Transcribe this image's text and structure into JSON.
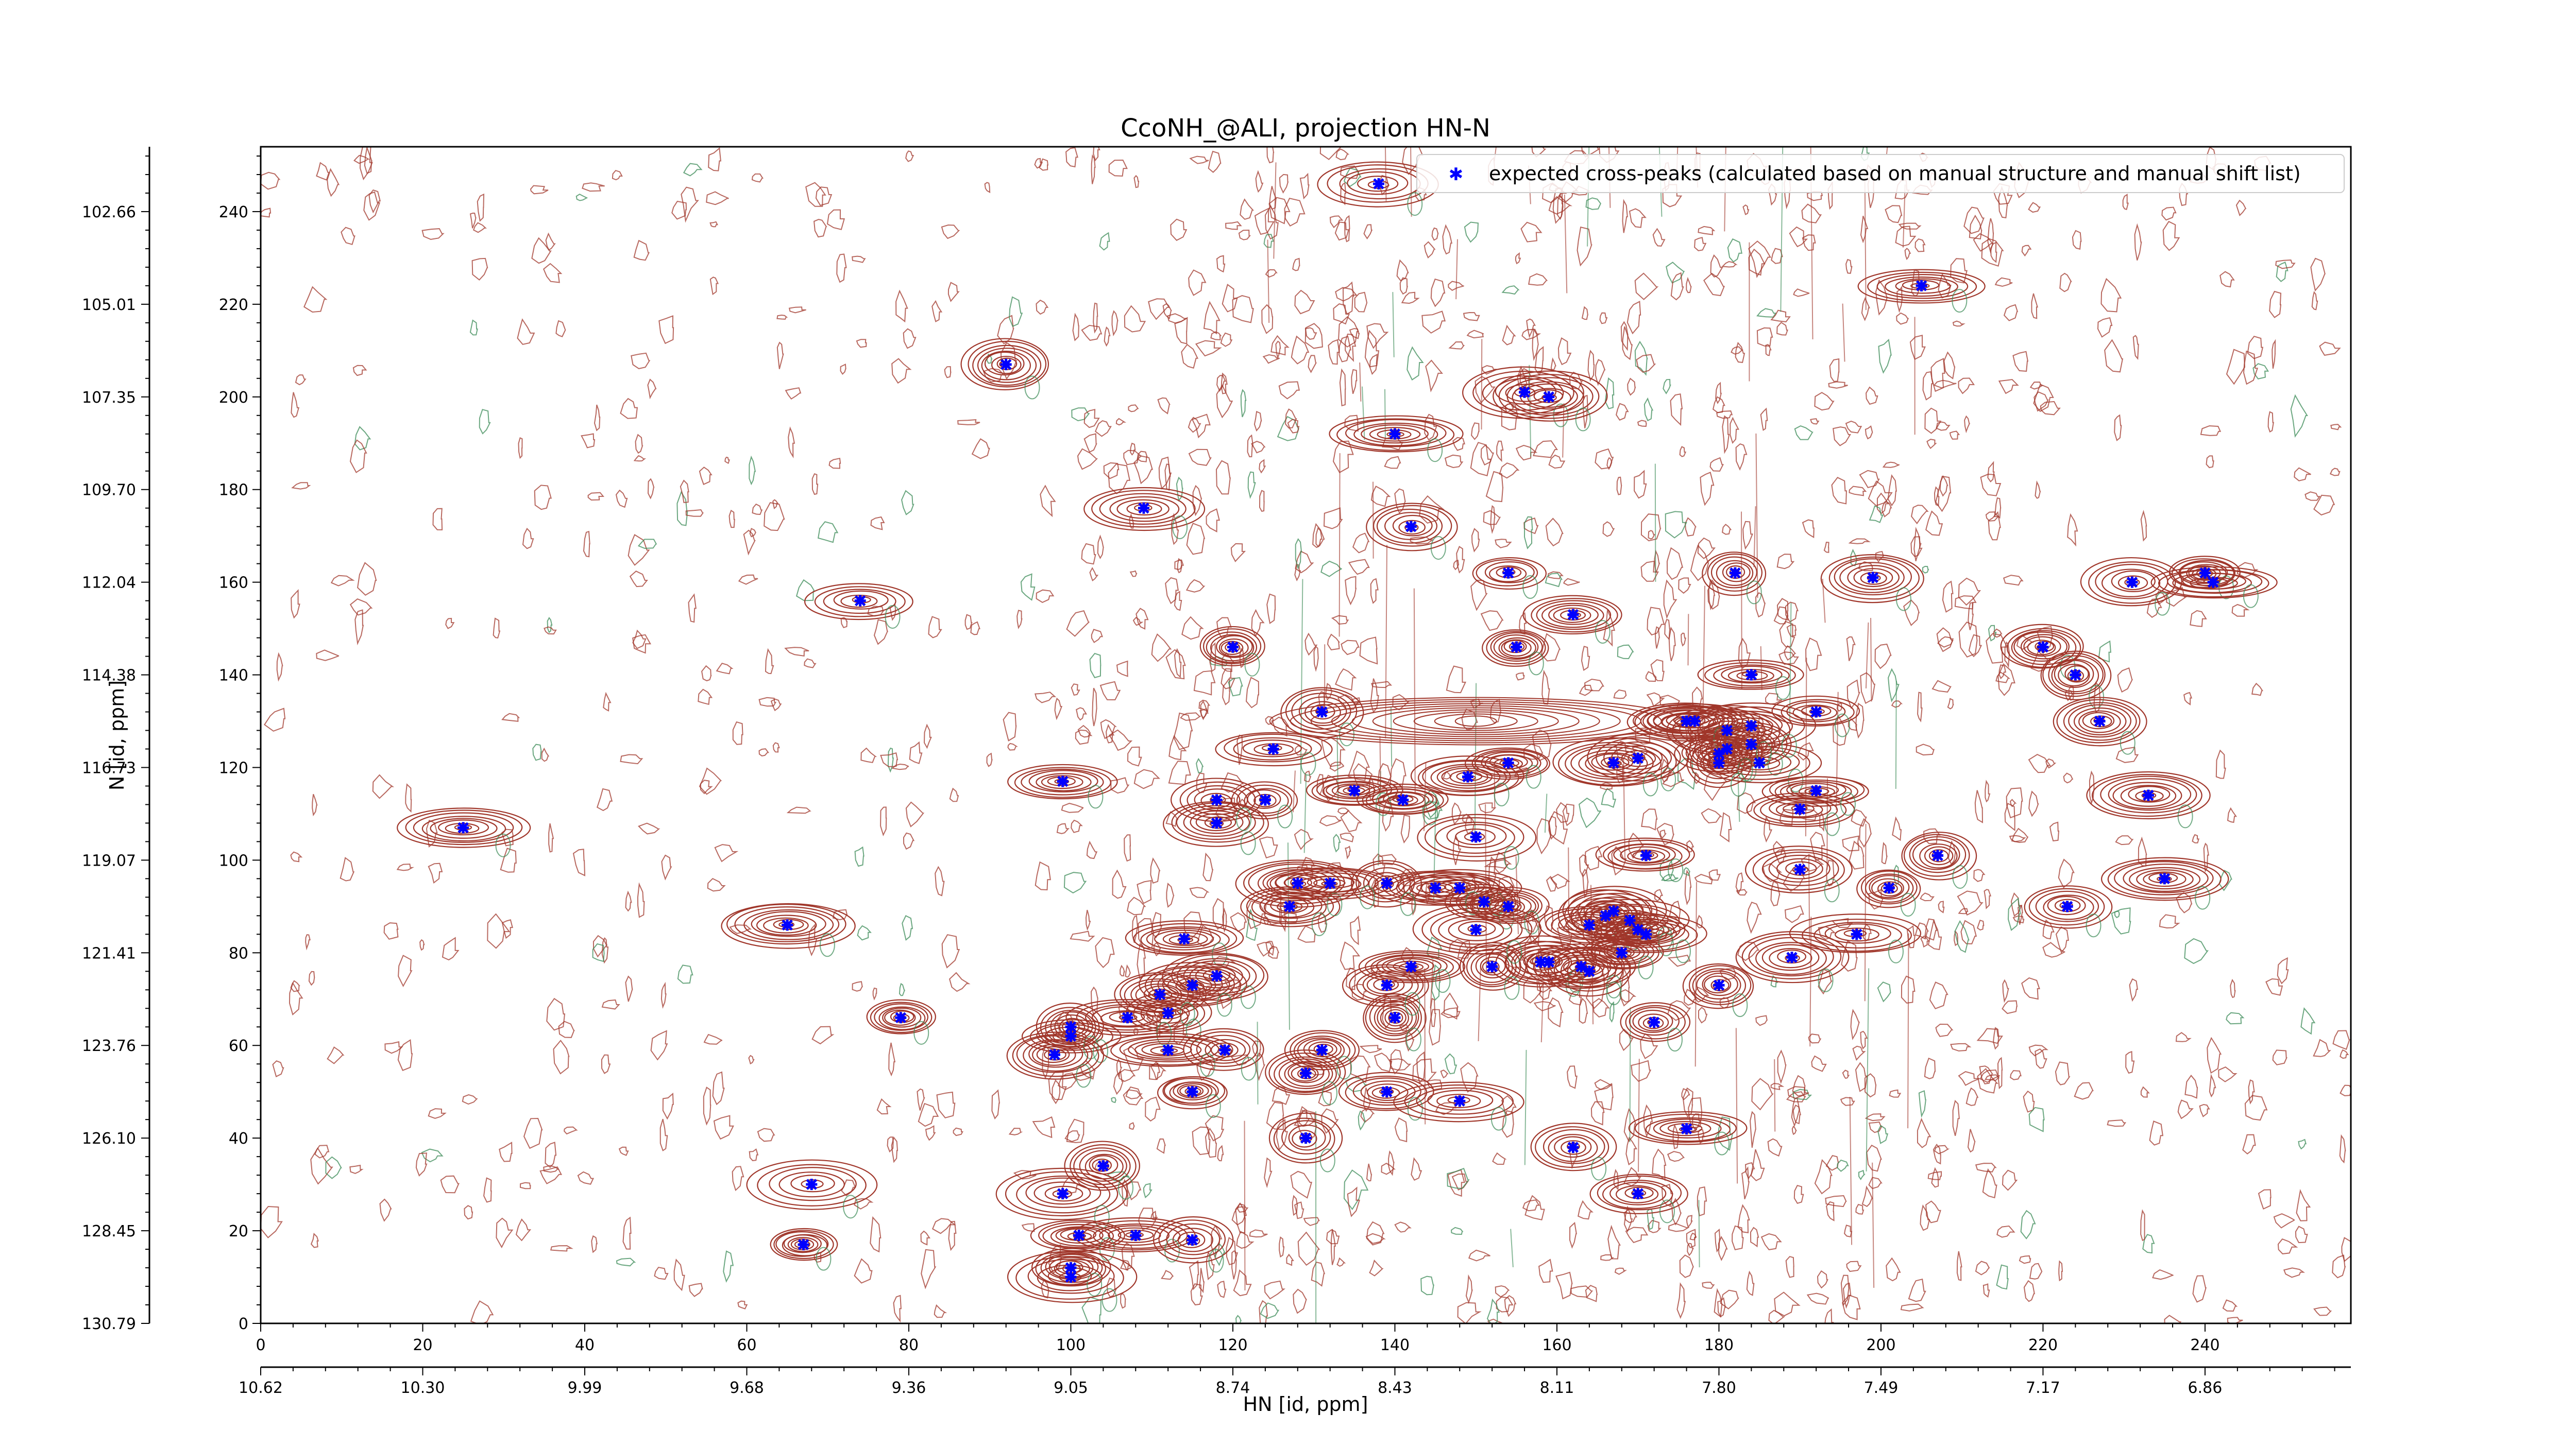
{
  "chart_data": {
    "type": "scatter",
    "title": "CcoNH_@ALI, projection HN-N",
    "xlabel": "HN [id, ppm]",
    "ylabel": "N [id, ppm]",
    "x_index_ticks": [
      "0",
      "20",
      "40",
      "60",
      "80",
      "100",
      "120",
      "140",
      "160",
      "180",
      "200",
      "220",
      "240"
    ],
    "x_ppm_ticks": [
      "10.62",
      "10.30",
      "9.99",
      "9.68",
      "9.36",
      "9.05",
      "8.74",
      "8.43",
      "8.11",
      "7.80",
      "7.49",
      "7.17",
      "6.86"
    ],
    "y_index_ticks": [
      "0",
      "20",
      "40",
      "60",
      "80",
      "100",
      "120",
      "140",
      "160",
      "180",
      "200",
      "220",
      "240"
    ],
    "y_ppm_ticks": [
      "130.79",
      "128.45",
      "126.10",
      "123.76",
      "121.41",
      "119.07",
      "116.73",
      "114.38",
      "112.04",
      "109.70",
      "107.35",
      "105.01",
      "102.66"
    ],
    "xlim": [
      0,
      258
    ],
    "ylim": [
      0,
      254
    ],
    "grid": false,
    "legend_position": "top-right",
    "contour_color": "#a0362a",
    "negative_contour_color": "#3a8a55",
    "series": [
      {
        "name": "expected cross-peaks (calculated based on manual structure and manual shift list)",
        "color": "#0000ff",
        "marker": "x",
        "points": [
          [
            138,
            246
          ],
          [
            205,
            224
          ],
          [
            92,
            207
          ],
          [
            156,
            201
          ],
          [
            159,
            200
          ],
          [
            140,
            192
          ],
          [
            109,
            176
          ],
          [
            142,
            172
          ],
          [
            74,
            156
          ],
          [
            120,
            146
          ],
          [
            154,
            162
          ],
          [
            162,
            153
          ],
          [
            155,
            146
          ],
          [
            182,
            162
          ],
          [
            199,
            161
          ],
          [
            231,
            160
          ],
          [
            240,
            162
          ],
          [
            241,
            160
          ],
          [
            184,
            140
          ],
          [
            220,
            146
          ],
          [
            224,
            140
          ],
          [
            227,
            130
          ],
          [
            131,
            132
          ],
          [
            125,
            124
          ],
          [
            154,
            121
          ],
          [
            170,
            122
          ],
          [
            177,
            130
          ],
          [
            181,
            124
          ],
          [
            184,
            125
          ],
          [
            185,
            121
          ],
          [
            180,
            123
          ],
          [
            180,
            121
          ],
          [
            192,
            132
          ],
          [
            176,
            130
          ],
          [
            181,
            128
          ],
          [
            184,
            129
          ],
          [
            99,
            117
          ],
          [
            135,
            115
          ],
          [
            141,
            113
          ],
          [
            149,
            118
          ],
          [
            124,
            113
          ],
          [
            118,
            108
          ],
          [
            190,
            111
          ],
          [
            192,
            115
          ],
          [
            233,
            114
          ],
          [
            127,
            90
          ],
          [
            151,
            91
          ],
          [
            148,
            94
          ],
          [
            145,
            94
          ],
          [
            139,
            95
          ],
          [
            150,
            105
          ],
          [
            154,
            90
          ],
          [
            164,
            86
          ],
          [
            166,
            88
          ],
          [
            167,
            89
          ],
          [
            169,
            87
          ],
          [
            170,
            85
          ],
          [
            171,
            84
          ],
          [
            158,
            78
          ],
          [
            159,
            78
          ],
          [
            163,
            77
          ],
          [
            164,
            76
          ],
          [
            168,
            80
          ],
          [
            171,
            101
          ],
          [
            190,
            98
          ],
          [
            201,
            94
          ],
          [
            235,
            96
          ],
          [
            207,
            101
          ],
          [
            223,
            90
          ],
          [
            25,
            107
          ],
          [
            65,
            86
          ],
          [
            128,
            95
          ],
          [
            132,
            95
          ],
          [
            142,
            77
          ],
          [
            152,
            77
          ],
          [
            114,
            83
          ],
          [
            118,
            75
          ],
          [
            115,
            73
          ],
          [
            112,
            67
          ],
          [
            111,
            71
          ],
          [
            107,
            66
          ],
          [
            100,
            62
          ],
          [
            100,
            64
          ],
          [
            98,
            58
          ],
          [
            112,
            59
          ],
          [
            119,
            59
          ],
          [
            115,
            50
          ],
          [
            140,
            66
          ],
          [
            139,
            73
          ],
          [
            131,
            59
          ],
          [
            129,
            54
          ],
          [
            129,
            40
          ],
          [
            139,
            50
          ],
          [
            148,
            48
          ],
          [
            150,
            85
          ],
          [
            172,
            65
          ],
          [
            180,
            73
          ],
          [
            162,
            38
          ],
          [
            79,
            66
          ],
          [
            68,
            30
          ],
          [
            67,
            17
          ],
          [
            99,
            28
          ],
          [
            104,
            34
          ],
          [
            101,
            19
          ],
          [
            108,
            19
          ],
          [
            100,
            12
          ],
          [
            115,
            18
          ],
          [
            170,
            28
          ],
          [
            176,
            42
          ],
          [
            189,
            79
          ],
          [
            197,
            84
          ],
          [
            100,
            10
          ],
          [
            118,
            113
          ],
          [
            167,
            121
          ]
        ]
      }
    ]
  }
}
